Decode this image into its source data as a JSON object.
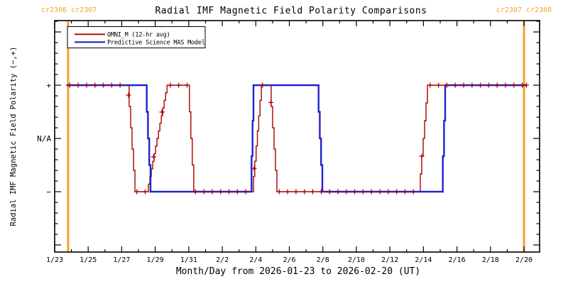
{
  "header": {
    "title": "Radial IMF Magnetic Field Polarity Comparisons",
    "cr_left": "cr2306 cr2307",
    "cr_right": "cr2307 cr2308"
  },
  "colors": {
    "omni": "#AA0000",
    "mas": "#2222CC",
    "boundary": "#F5A12E",
    "axis": "#000000",
    "background": "#FFFFFF"
  },
  "legend": {
    "entries": [
      {
        "key": "omni",
        "label": "OMNI_M (12-hr avg)"
      },
      {
        "key": "mas",
        "label": "Predictive Science MAS Model"
      }
    ]
  },
  "chart_data": {
    "type": "line",
    "title": "Radial IMF Magnetic Field Polarity Comparisons",
    "xlabel": "Month/Day from 2026-01-23 to 2026-02-20 (UT)",
    "ylabel": "Radial IMF Magnetic Field Polarity (−,+)",
    "x_unit": "days since 2026-01-23 00:00 UT",
    "x_range": [
      0,
      28.95
    ],
    "y_range": [
      -2.2,
      2.2
    ],
    "grid": false,
    "legend_position": "top-left-inside",
    "x_tick_days": [
      0,
      2,
      4,
      6,
      8,
      10,
      12,
      14,
      16,
      18,
      20,
      22,
      24,
      26,
      28
    ],
    "x_tick_labels": [
      "1/23",
      "1/25",
      "1/27",
      "1/29",
      "1/31",
      "2/2",
      "2/4",
      "2/6",
      "2/8",
      "2/10",
      "2/12",
      "2/14",
      "2/16",
      "2/18",
      "2/20"
    ],
    "x_minor_tick_days": [
      1,
      3,
      5,
      7,
      9,
      11,
      13,
      15,
      17,
      19,
      21,
      23,
      25,
      27
    ],
    "y_major_values": [
      -2,
      -1,
      0,
      1,
      2
    ],
    "y_labeled_values": [
      1,
      0,
      -1
    ],
    "y_tick_labels": [
      "+",
      "N/A",
      "−"
    ],
    "carrington_boundaries_days": [
      0.8,
      28.0
    ],
    "series": [
      {
        "key": "omni",
        "name": "OMNI_M (12-hr avg)",
        "marker": "plus",
        "marker_start_day": 0.9,
        "marker_step_days": 0.5,
        "marker_extra_days": [
          28.15
        ],
        "points": [
          [
            0.7,
            1
          ],
          [
            4.36,
            1
          ],
          [
            4.79,
            -1
          ],
          [
            5.51,
            -1
          ],
          [
            6.7,
            1
          ],
          [
            7.95,
            1
          ],
          [
            8.3,
            -1
          ],
          [
            11.78,
            -1
          ],
          [
            12.33,
            1
          ],
          [
            12.83,
            1
          ],
          [
            13.26,
            -1
          ],
          [
            21.73,
            -1
          ],
          [
            22.24,
            1
          ],
          [
            28.17,
            1
          ]
        ]
      },
      {
        "key": "mas",
        "name": "Predictive Science MAS Model",
        "marker": "none",
        "points": [
          [
            0.7,
            1
          ],
          [
            5.42,
            1
          ],
          [
            5.72,
            -1
          ],
          [
            11.69,
            -1
          ],
          [
            11.86,
            1
          ],
          [
            15.67,
            1
          ],
          [
            15.97,
            -1
          ],
          [
            23.09,
            -1
          ],
          [
            23.3,
            1
          ],
          [
            28.13,
            1
          ]
        ]
      }
    ]
  }
}
